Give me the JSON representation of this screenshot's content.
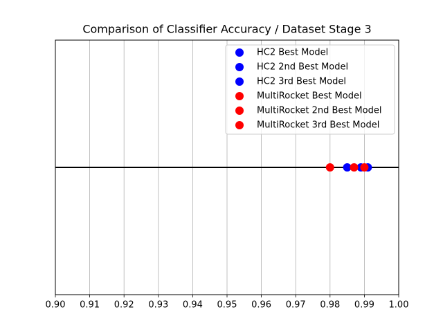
{
  "chart_data": {
    "type": "dot",
    "title": "Comparison of Classifier Accuracy / Dataset Stage 3",
    "xlim": [
      0.9,
      1.0
    ],
    "xticks": [
      {
        "value": 0.9,
        "label": "0.90"
      },
      0.91,
      0.92,
      0.93,
      0.94,
      0.95,
      0.96,
      0.97,
      0.98,
      0.99,
      {
        "value": 1.0,
        "label": "1.00"
      }
    ],
    "grid": true,
    "legend": "upper right",
    "series": [
      {
        "name": "HC2 Best Model",
        "color": "#0000ff",
        "values": [
          0.991
        ]
      },
      {
        "name": "HC2 2nd Best Model",
        "color": "#0000ff",
        "values": [
          0.989
        ]
      },
      {
        "name": "HC2 3rd Best Model",
        "color": "#0000ff",
        "values": [
          0.985
        ]
      },
      {
        "name": "MultiRocket Best Model",
        "color": "#ff0000",
        "values": [
          0.99
        ]
      },
      {
        "name": "MultiRocket 2nd Best Model",
        "color": "#ff0000",
        "values": [
          0.987
        ]
      },
      {
        "name": "MultiRocket 3rd Best Model",
        "color": "#ff0000",
        "values": [
          0.98
        ]
      }
    ]
  }
}
